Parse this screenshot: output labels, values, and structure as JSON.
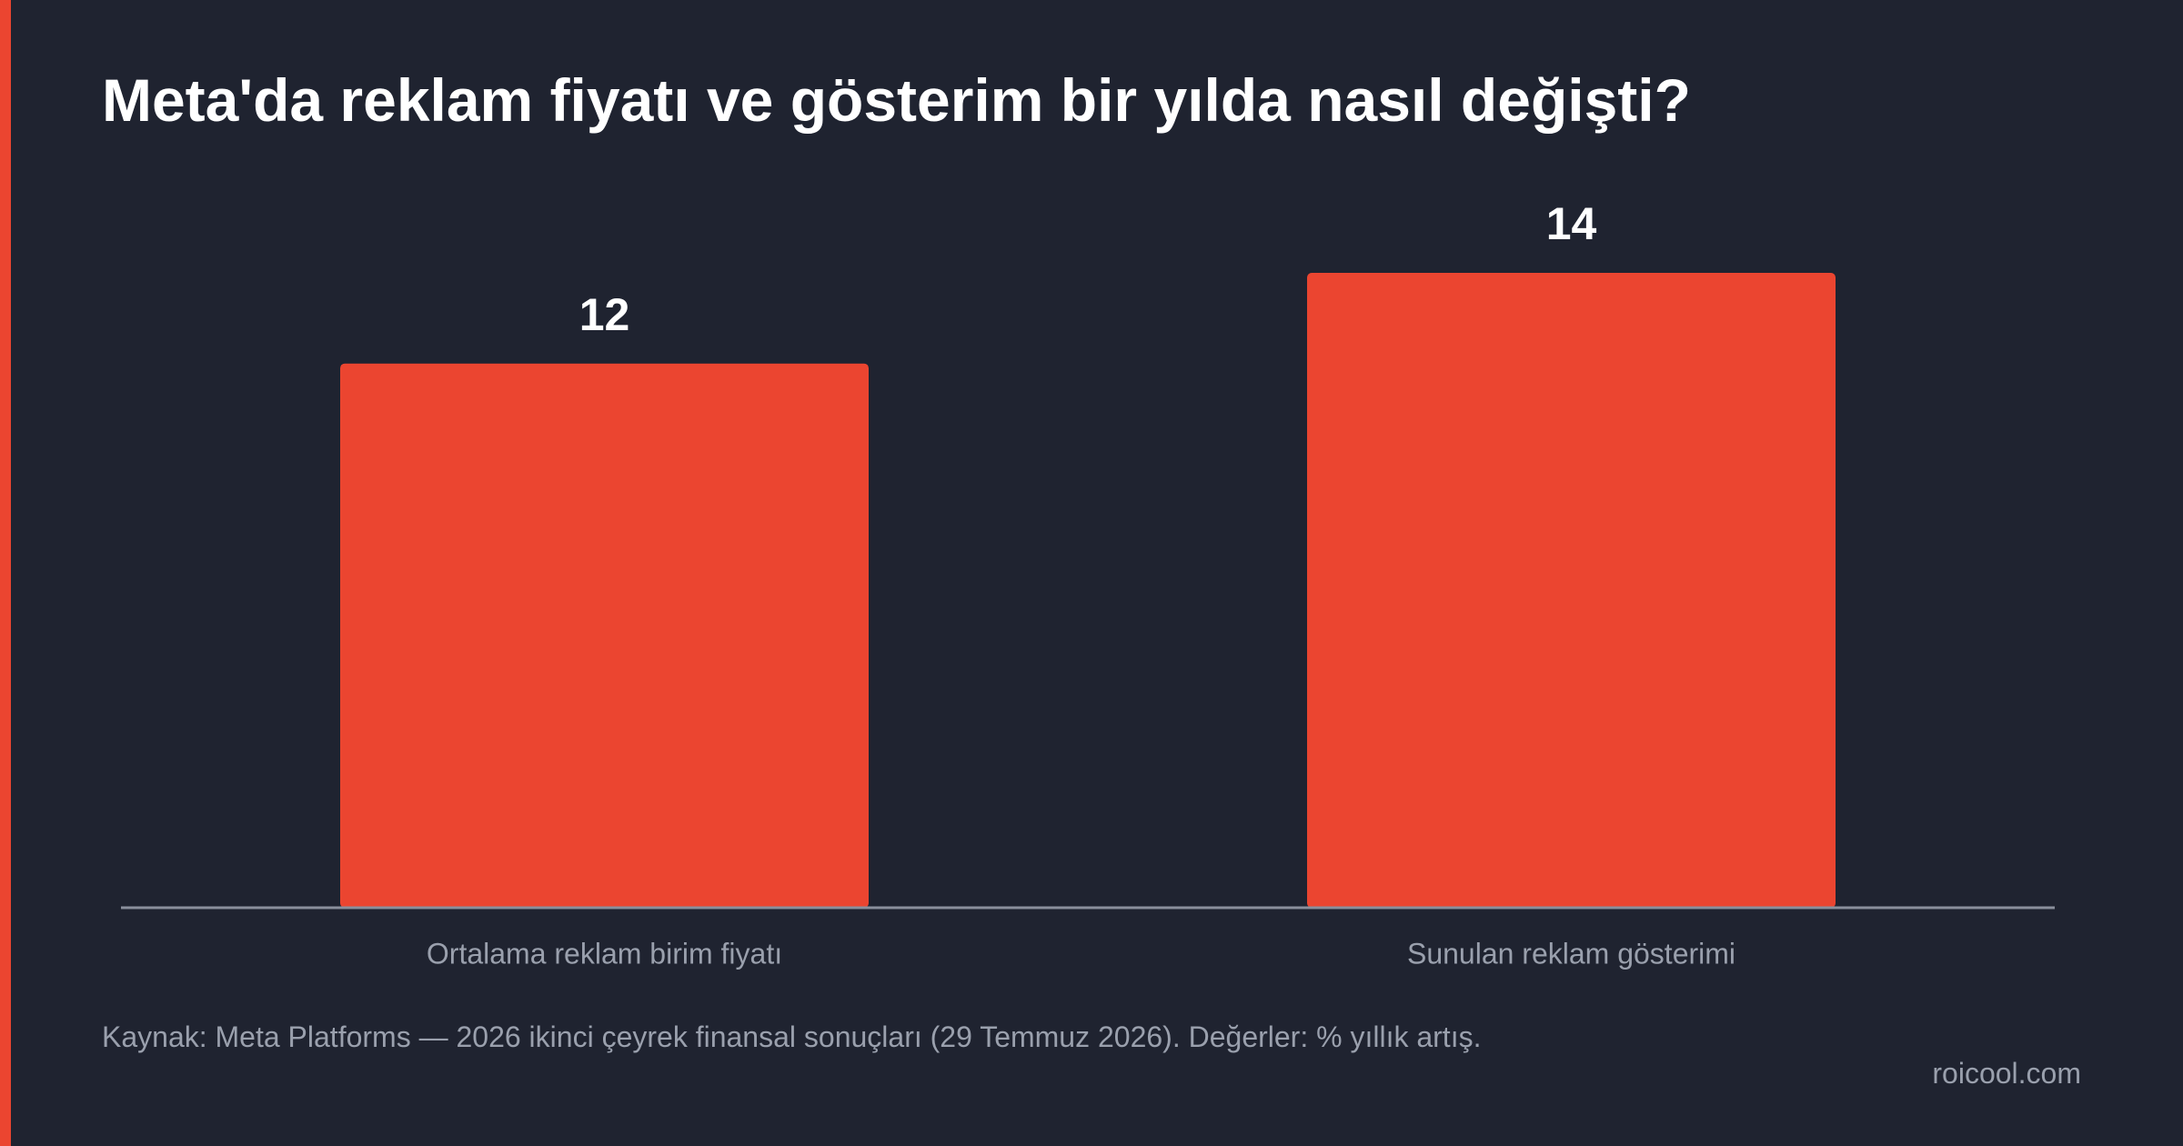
{
  "chart_data": {
    "type": "bar",
    "title": "Meta'da reklam fiyatı ve gösterim bir yılda nasıl değişti?",
    "categories": [
      "Ortalama reklam birim fiyatı",
      "Sunulan reklam gösterimi"
    ],
    "values": [
      12,
      14
    ],
    "color": "#eb4530",
    "source": "Kaynak: Meta Platforms — 2026 ikinci çeyrek finansal sonuçları (29 Temmuz 2026). Değerler: % yıllık artış.",
    "brand": "roicool.com"
  }
}
